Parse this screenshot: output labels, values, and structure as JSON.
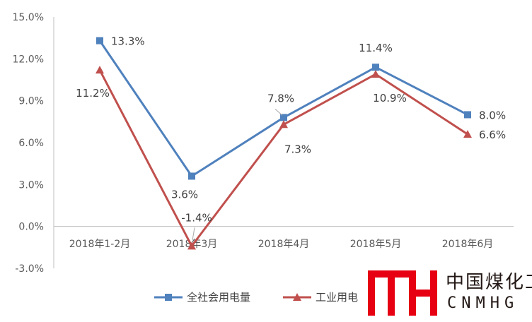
{
  "chart_data": {
    "type": "line",
    "categories": [
      "2018年1-2月",
      "2018年3月",
      "2018年4月",
      "2018年5月",
      "2018年6月"
    ],
    "series": [
      {
        "name": "全社会用电量",
        "values": [
          13.3,
          3.6,
          7.8,
          11.4,
          8.0
        ],
        "labels": [
          "13.3%",
          "3.6%",
          "7.8%",
          "11.4%",
          "8.0%"
        ],
        "color": "#4F81BD",
        "marker": "square"
      },
      {
        "name": "工业用电",
        "values": [
          11.2,
          -1.4,
          7.3,
          10.9,
          6.6
        ],
        "labels": [
          "11.2%",
          "-1.4%",
          "7.3%",
          "10.9%",
          "6.6%"
        ],
        "color": "#C0504D",
        "marker": "triangle"
      }
    ],
    "ylim": [
      -3.0,
      15.0
    ],
    "yticks": [
      15.0,
      12.0,
      9.0,
      6.0,
      3.0,
      0.0,
      -3.0
    ],
    "ytick_labels": [
      "15.0%",
      "12.0%",
      "9.0%",
      "6.0%",
      "3.0%",
      "0.0%",
      "-3.0%"
    ],
    "legend": "bottom",
    "grid": false
  },
  "watermark": {
    "cn": "中国煤化工",
    "en": "CNMHG",
    "logo_color": "#E60012"
  }
}
